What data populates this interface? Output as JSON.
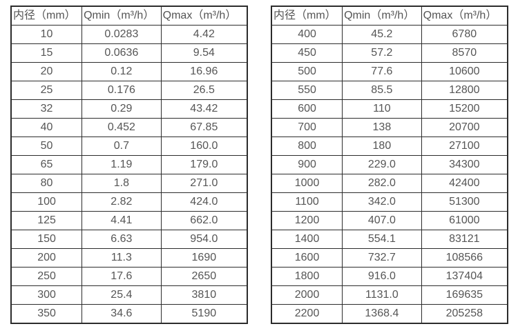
{
  "colors": {
    "border": "#2b2b2b",
    "text": "#555555",
    "background": "#ffffff"
  },
  "tables": [
    {
      "name": "flow-rate-table-small-diameters",
      "headers": [
        "内径（mm）",
        "Qmin（m³/h）",
        "Qmax（m³/h）"
      ],
      "rows": [
        [
          "10",
          "0.0283",
          "4.42"
        ],
        [
          "15",
          "0.0636",
          "9.54"
        ],
        [
          "20",
          "0.12",
          "16.96"
        ],
        [
          "25",
          "0.176",
          "26.5"
        ],
        [
          "32",
          "0.29",
          "43.42"
        ],
        [
          "40",
          "0.452",
          "67.85"
        ],
        [
          "50",
          "0.7",
          "160.0"
        ],
        [
          "65",
          "1.19",
          "179.0"
        ],
        [
          "80",
          "1.8",
          "271.0"
        ],
        [
          "100",
          "2.82",
          "424.0"
        ],
        [
          "125",
          "4.41",
          "662.0"
        ],
        [
          "150",
          "6.63",
          "954.0"
        ],
        [
          "200",
          "11.3",
          "1690"
        ],
        [
          "250",
          "17.6",
          "2650"
        ],
        [
          "300",
          "25.4",
          "3810"
        ],
        [
          "350",
          "34.6",
          "5190"
        ]
      ]
    },
    {
      "name": "flow-rate-table-large-diameters",
      "headers": [
        "内径（mm）",
        "Qmin（m³/h）",
        "Qmax（m³/h）"
      ],
      "rows": [
        [
          "400",
          "45.2",
          "6780"
        ],
        [
          "450",
          "57.2",
          "8570"
        ],
        [
          "500",
          "77.6",
          "10600"
        ],
        [
          "550",
          "85.5",
          "12800"
        ],
        [
          "600",
          "110",
          "15200"
        ],
        [
          "700",
          "138",
          "20700"
        ],
        [
          "800",
          "180",
          "27100"
        ],
        [
          "900",
          "229.0",
          "34300"
        ],
        [
          "1000",
          "282.0",
          "42400"
        ],
        [
          "1100",
          "342.0",
          "51300"
        ],
        [
          "1200",
          "407.0",
          "61000"
        ],
        [
          "1400",
          "554.1",
          "83121"
        ],
        [
          "1600",
          "732.7",
          "108566"
        ],
        [
          "1800",
          "916.0",
          "137404"
        ],
        [
          "2000",
          "1131.0",
          "169635"
        ],
        [
          "2200",
          "1368.4",
          "205258"
        ]
      ]
    }
  ]
}
